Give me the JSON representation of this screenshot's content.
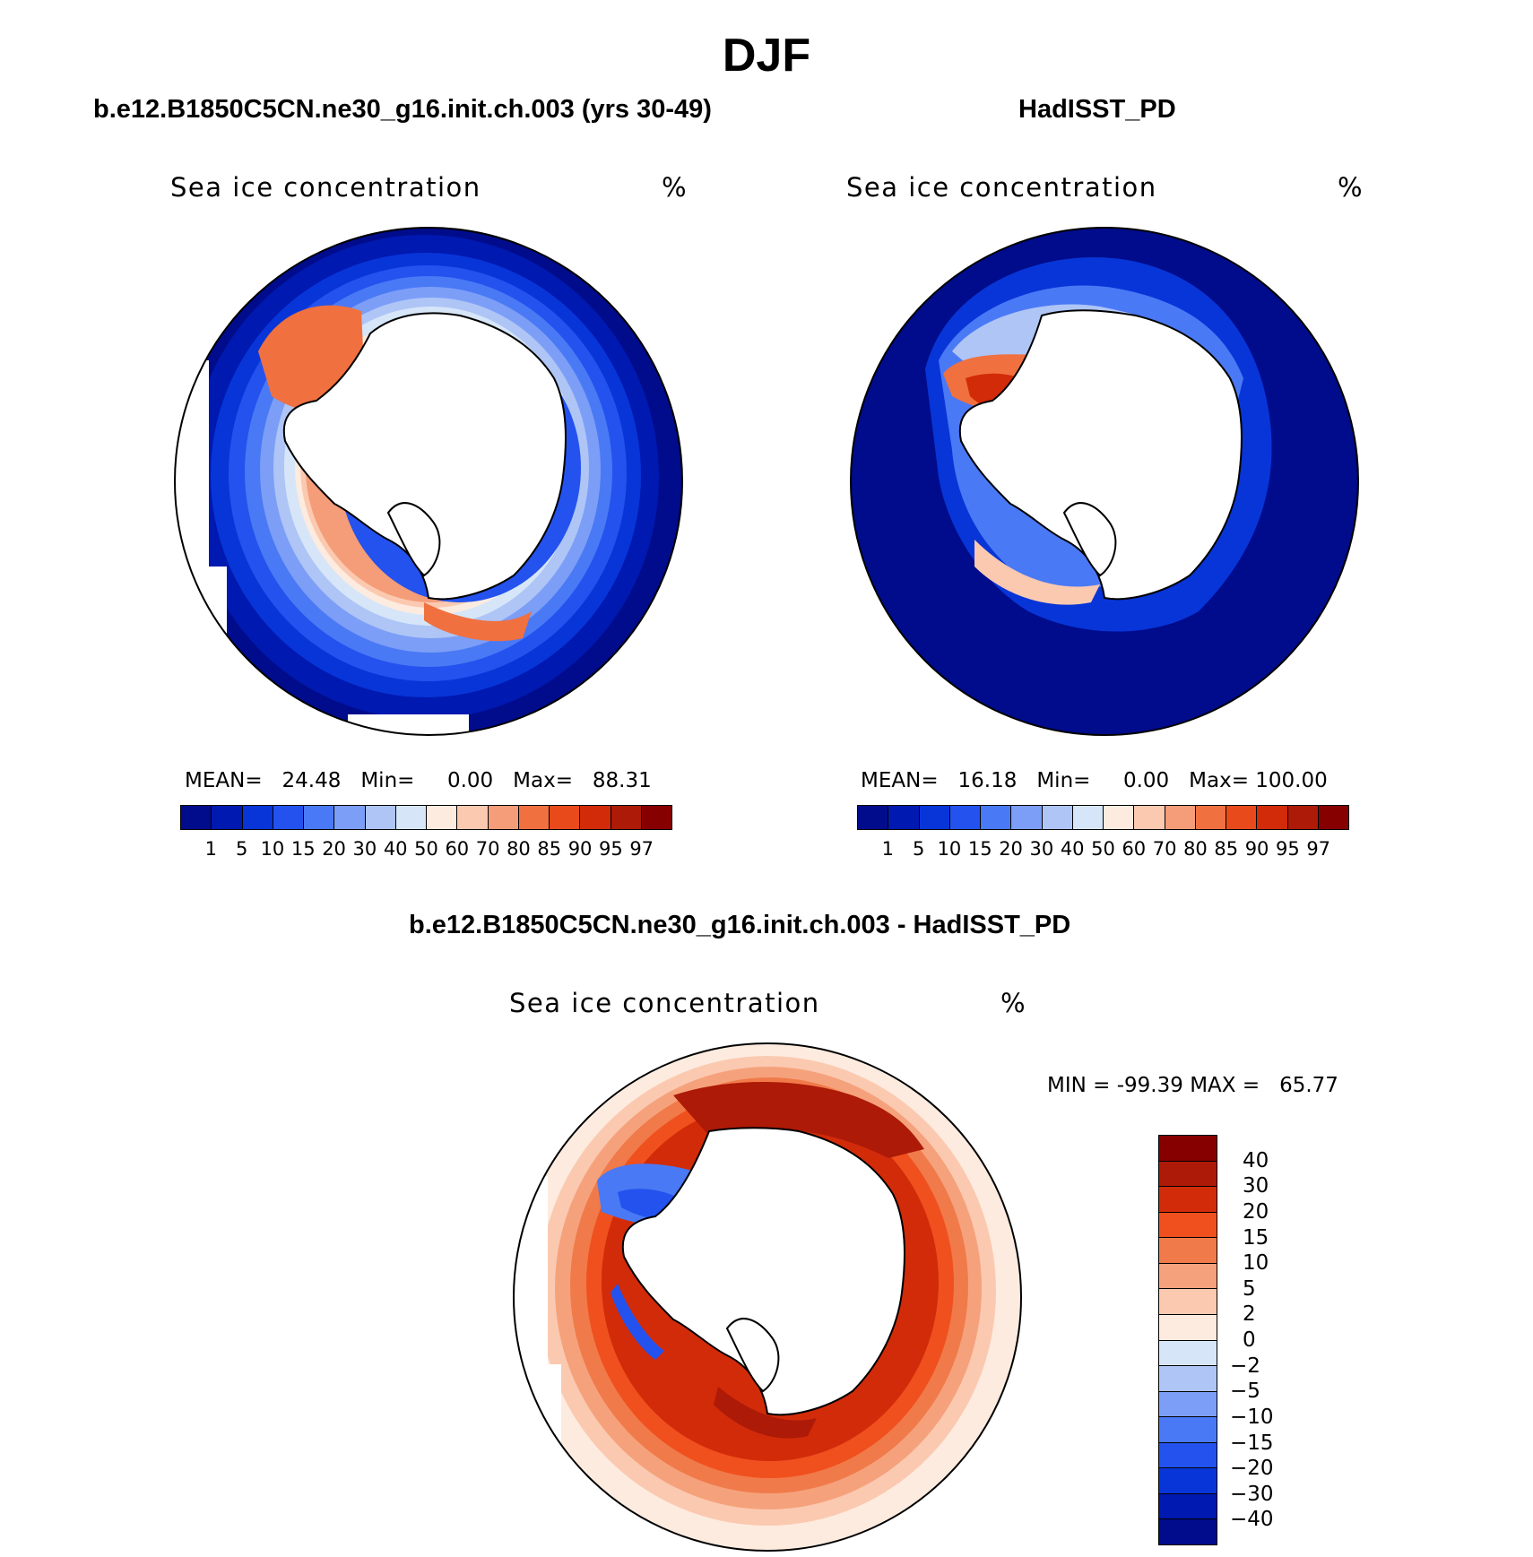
{
  "title": "DJF",
  "panels": {
    "model": {
      "title": "b.e12.B1850C5CN.ne30_g16.init.ch.003 (yrs 30-49)",
      "variable": "Sea ice concentration",
      "units": "%",
      "mean_label": "MEAN=",
      "mean_value": "24.48",
      "min_label": "Min=",
      "min_value": "0.00",
      "max_label": "Max=",
      "max_value": "88.31"
    },
    "obs": {
      "title": "HadISST_PD",
      "variable": "Sea ice concentration",
      "units": "%",
      "mean_label": "MEAN=",
      "mean_value": "16.18",
      "min_label": "Min=",
      "min_value": "0.00",
      "max_label": "Max=",
      "max_value": "100.00"
    },
    "diff": {
      "title": "b.e12.B1850C5CN.ne30_g16.init.ch.003 - HadISST_PD",
      "variable": "Sea ice concentration",
      "units": "%",
      "min_label": "MIN =",
      "min_value": "-99.39",
      "max_label": "MAX =",
      "max_value": "65.77"
    }
  },
  "colorbars": {
    "concentration": {
      "labels": [
        "1",
        "5",
        "10",
        "15",
        "20",
        "30",
        "40",
        "50",
        "60",
        "70",
        "80",
        "85",
        "90",
        "95",
        "97"
      ],
      "colors": [
        "#000c8b",
        "#0019b0",
        "#0835d8",
        "#2352ee",
        "#4a79f5",
        "#7c9ef7",
        "#aec5f6",
        "#d6e6f8",
        "#fdebdf",
        "#fbc9b0",
        "#f59c78",
        "#f0703f",
        "#e84a1c",
        "#d22b0a",
        "#ad1a07",
        "#870000"
      ]
    },
    "difference": {
      "labels": [
        "40",
        "30",
        "20",
        "15",
        "10",
        "5",
        "2",
        "0",
        "-2",
        "-5",
        "-10",
        "-15",
        "-20",
        "-30",
        "-40"
      ],
      "colors": [
        "#870000",
        "#ad1a07",
        "#d22b0a",
        "#f0501e",
        "#f07a4a",
        "#f5a27c",
        "#fbc9b0",
        "#fdebdf",
        "#d6e6f8",
        "#aec5f6",
        "#7c9ef7",
        "#4a79f5",
        "#2352ee",
        "#0835d8",
        "#0019b0",
        "#000c8b"
      ]
    }
  }
}
